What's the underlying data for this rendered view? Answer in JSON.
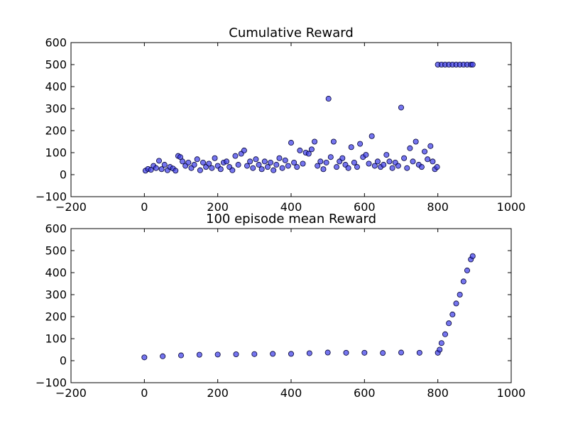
{
  "chart_data": [
    {
      "type": "scatter",
      "title": "Cumulative Reward",
      "xlabel": "",
      "ylabel": "",
      "xlim": [
        -200,
        1000
      ],
      "ylim": [
        -100,
        600
      ],
      "xticks": [
        -200,
        0,
        200,
        400,
        600,
        800,
        1000
      ],
      "yticks": [
        -100,
        0,
        100,
        200,
        300,
        400,
        500,
        600
      ],
      "xtick_labels": [
        "−200",
        "0",
        "200",
        "400",
        "600",
        "800",
        "1000"
      ],
      "ytick_labels": [
        "−100",
        "0",
        "100",
        "200",
        "300",
        "400",
        "500",
        "600"
      ],
      "grid": false,
      "marker_color": "#3b3be8",
      "marker_edge": "#000033",
      "points": [
        [
          3,
          18
        ],
        [
          10,
          26
        ],
        [
          18,
          22
        ],
        [
          25,
          40
        ],
        [
          32,
          30
        ],
        [
          40,
          63
        ],
        [
          47,
          25
        ],
        [
          55,
          45
        ],
        [
          63,
          20
        ],
        [
          70,
          35
        ],
        [
          78,
          28
        ],
        [
          85,
          18
        ],
        [
          92,
          85
        ],
        [
          98,
          80
        ],
        [
          104,
          60
        ],
        [
          112,
          40
        ],
        [
          120,
          55
        ],
        [
          128,
          30
        ],
        [
          136,
          45
        ],
        [
          144,
          70
        ],
        [
          152,
          20
        ],
        [
          160,
          55
        ],
        [
          168,
          35
        ],
        [
          176,
          50
        ],
        [
          184,
          30
        ],
        [
          192,
          75
        ],
        [
          200,
          40
        ],
        [
          208,
          25
        ],
        [
          216,
          55
        ],
        [
          224,
          60
        ],
        [
          232,
          35
        ],
        [
          240,
          20
        ],
        [
          248,
          85
        ],
        [
          256,
          45
        ],
        [
          264,
          95
        ],
        [
          272,
          110
        ],
        [
          280,
          40
        ],
        [
          288,
          60
        ],
        [
          296,
          30
        ],
        [
          304,
          70
        ],
        [
          312,
          45
        ],
        [
          320,
          25
        ],
        [
          328,
          60
        ],
        [
          336,
          35
        ],
        [
          344,
          55
        ],
        [
          352,
          20
        ],
        [
          360,
          45
        ],
        [
          368,
          75
        ],
        [
          376,
          30
        ],
        [
          384,
          65
        ],
        [
          392,
          40
        ],
        [
          400,
          145
        ],
        [
          408,
          55
        ],
        [
          416,
          35
        ],
        [
          424,
          110
        ],
        [
          432,
          50
        ],
        [
          440,
          100
        ],
        [
          448,
          95
        ],
        [
          456,
          115
        ],
        [
          464,
          150
        ],
        [
          472,
          40
        ],
        [
          480,
          60
        ],
        [
          488,
          25
        ],
        [
          496,
          55
        ],
        [
          502,
          345
        ],
        [
          508,
          80
        ],
        [
          516,
          150
        ],
        [
          524,
          35
        ],
        [
          532,
          60
        ],
        [
          540,
          75
        ],
        [
          548,
          45
        ],
        [
          556,
          30
        ],
        [
          564,
          125
        ],
        [
          572,
          55
        ],
        [
          580,
          35
        ],
        [
          588,
          140
        ],
        [
          596,
          80
        ],
        [
          604,
          90
        ],
        [
          612,
          50
        ],
        [
          620,
          175
        ],
        [
          628,
          40
        ],
        [
          636,
          60
        ],
        [
          644,
          35
        ],
        [
          652,
          45
        ],
        [
          660,
          90
        ],
        [
          668,
          60
        ],
        [
          676,
          30
        ],
        [
          684,
          55
        ],
        [
          692,
          40
        ],
        [
          700,
          305
        ],
        [
          708,
          75
        ],
        [
          716,
          30
        ],
        [
          724,
          120
        ],
        [
          732,
          60
        ],
        [
          740,
          150
        ],
        [
          748,
          45
        ],
        [
          756,
          35
        ],
        [
          764,
          105
        ],
        [
          772,
          70
        ],
        [
          780,
          130
        ],
        [
          786,
          60
        ],
        [
          792,
          25
        ],
        [
          798,
          35
        ],
        [
          800,
          500
        ],
        [
          810,
          500
        ],
        [
          820,
          500
        ],
        [
          830,
          500
        ],
        [
          840,
          500
        ],
        [
          850,
          500
        ],
        [
          860,
          500
        ],
        [
          870,
          500
        ],
        [
          880,
          500
        ],
        [
          890,
          500
        ],
        [
          895,
          500
        ]
      ]
    },
    {
      "type": "scatter",
      "title": "100 episode mean Reward",
      "xlabel": "",
      "ylabel": "",
      "xlim": [
        -200,
        1000
      ],
      "ylim": [
        -100,
        600
      ],
      "xticks": [
        -200,
        0,
        200,
        400,
        600,
        800,
        1000
      ],
      "yticks": [
        -100,
        0,
        100,
        200,
        300,
        400,
        500,
        600
      ],
      "xtick_labels": [
        "−200",
        "0",
        "200",
        "400",
        "600",
        "800",
        "1000"
      ],
      "ytick_labels": [
        "−100",
        "0",
        "100",
        "200",
        "300",
        "400",
        "500",
        "600"
      ],
      "grid": false,
      "marker_color": "#3b3be8",
      "marker_edge": "#000033",
      "points": [
        [
          0,
          15
        ],
        [
          50,
          20
        ],
        [
          100,
          24
        ],
        [
          150,
          27
        ],
        [
          200,
          28
        ],
        [
          250,
          29
        ],
        [
          300,
          30
        ],
        [
          350,
          31
        ],
        [
          400,
          31
        ],
        [
          450,
          34
        ],
        [
          500,
          37
        ],
        [
          550,
          36
        ],
        [
          600,
          36
        ],
        [
          650,
          35
        ],
        [
          700,
          37
        ],
        [
          750,
          36
        ],
        [
          800,
          36
        ],
        [
          805,
          50
        ],
        [
          810,
          80
        ],
        [
          820,
          120
        ],
        [
          830,
          170
        ],
        [
          840,
          210
        ],
        [
          850,
          260
        ],
        [
          860,
          300
        ],
        [
          870,
          360
        ],
        [
          880,
          410
        ],
        [
          890,
          460
        ],
        [
          895,
          475
        ]
      ]
    }
  ]
}
